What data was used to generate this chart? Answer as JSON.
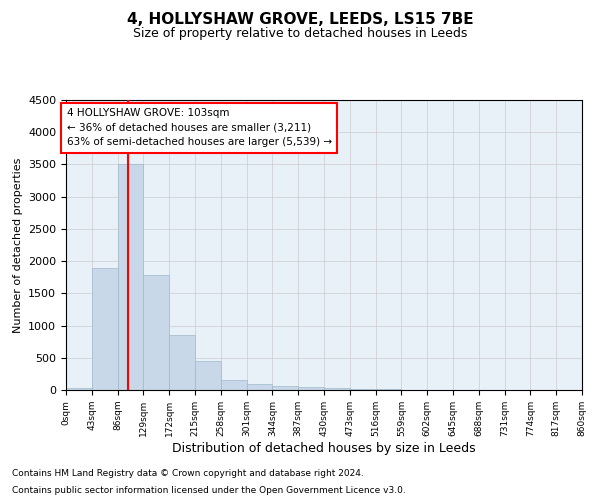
{
  "title": "4, HOLLYSHAW GROVE, LEEDS, LS15 7BE",
  "subtitle": "Size of property relative to detached houses in Leeds",
  "xlabel": "Distribution of detached houses by size in Leeds",
  "ylabel": "Number of detached properties",
  "bar_edges": [
    0,
    43,
    86,
    129,
    172,
    215,
    258,
    301,
    344,
    387,
    430,
    473,
    516,
    559,
    602,
    645,
    688,
    731,
    774,
    817,
    860
  ],
  "bar_values": [
    25,
    1900,
    3500,
    1780,
    850,
    450,
    160,
    100,
    65,
    45,
    25,
    15,
    8,
    5,
    3,
    2,
    1,
    1,
    1,
    1
  ],
  "bar_color": "#c8d8e8",
  "bar_edge_color": "#a0b8cc",
  "red_line_x": 103,
  "ylim": [
    0,
    4500
  ],
  "yticks": [
    0,
    500,
    1000,
    1500,
    2000,
    2500,
    3000,
    3500,
    4000,
    4500
  ],
  "annotation_title": "4 HOLLYSHAW GROVE: 103sqm",
  "annotation_line1": "← 36% of detached houses are smaller (3,211)",
  "annotation_line2": "63% of semi-detached houses are larger (5,539) →",
  "footnote1": "Contains HM Land Registry data © Crown copyright and database right 2024.",
  "footnote2": "Contains public sector information licensed under the Open Government Licence v3.0.",
  "background_color": "#ffffff",
  "grid_color": "#cccccc",
  "tick_labels": [
    "0sqm",
    "43sqm",
    "86sqm",
    "129sqm",
    "172sqm",
    "215sqm",
    "258sqm",
    "301sqm",
    "344sqm",
    "387sqm",
    "430sqm",
    "473sqm",
    "516sqm",
    "559sqm",
    "602sqm",
    "645sqm",
    "688sqm",
    "731sqm",
    "774sqm",
    "817sqm",
    "860sqm"
  ]
}
